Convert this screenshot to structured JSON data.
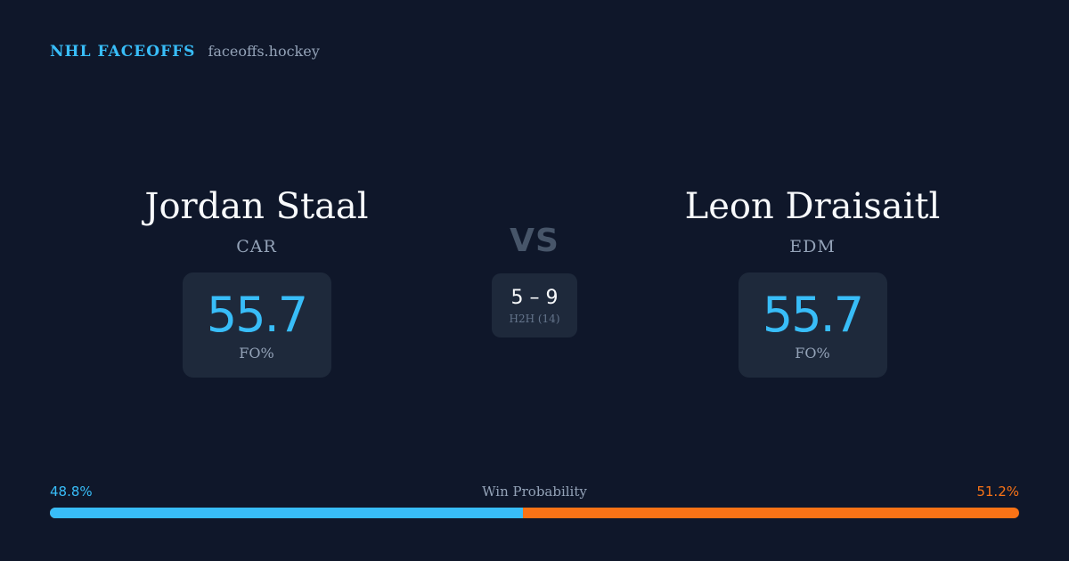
{
  "brand": {
    "name": "NHL FACEOFFS",
    "site": "faceoffs.hockey"
  },
  "player_left": {
    "name": "Jordan Staal",
    "team": "CAR",
    "fo_pct": "55.7",
    "fo_label": "FO%"
  },
  "player_right": {
    "name": "Leon Draisaitl",
    "team": "EDM",
    "fo_pct": "55.7",
    "fo_label": "FO%"
  },
  "versus": {
    "label": "VS",
    "h2h_score": "5 – 9",
    "h2h_label": "H2H (14)"
  },
  "win_probability": {
    "title": "Win Probability",
    "left_label": "48.8%",
    "right_label": "51.2%",
    "left_value": 48.8,
    "right_value": 51.2,
    "colors": {
      "left": "#38bdf8",
      "right": "#f97316"
    }
  }
}
